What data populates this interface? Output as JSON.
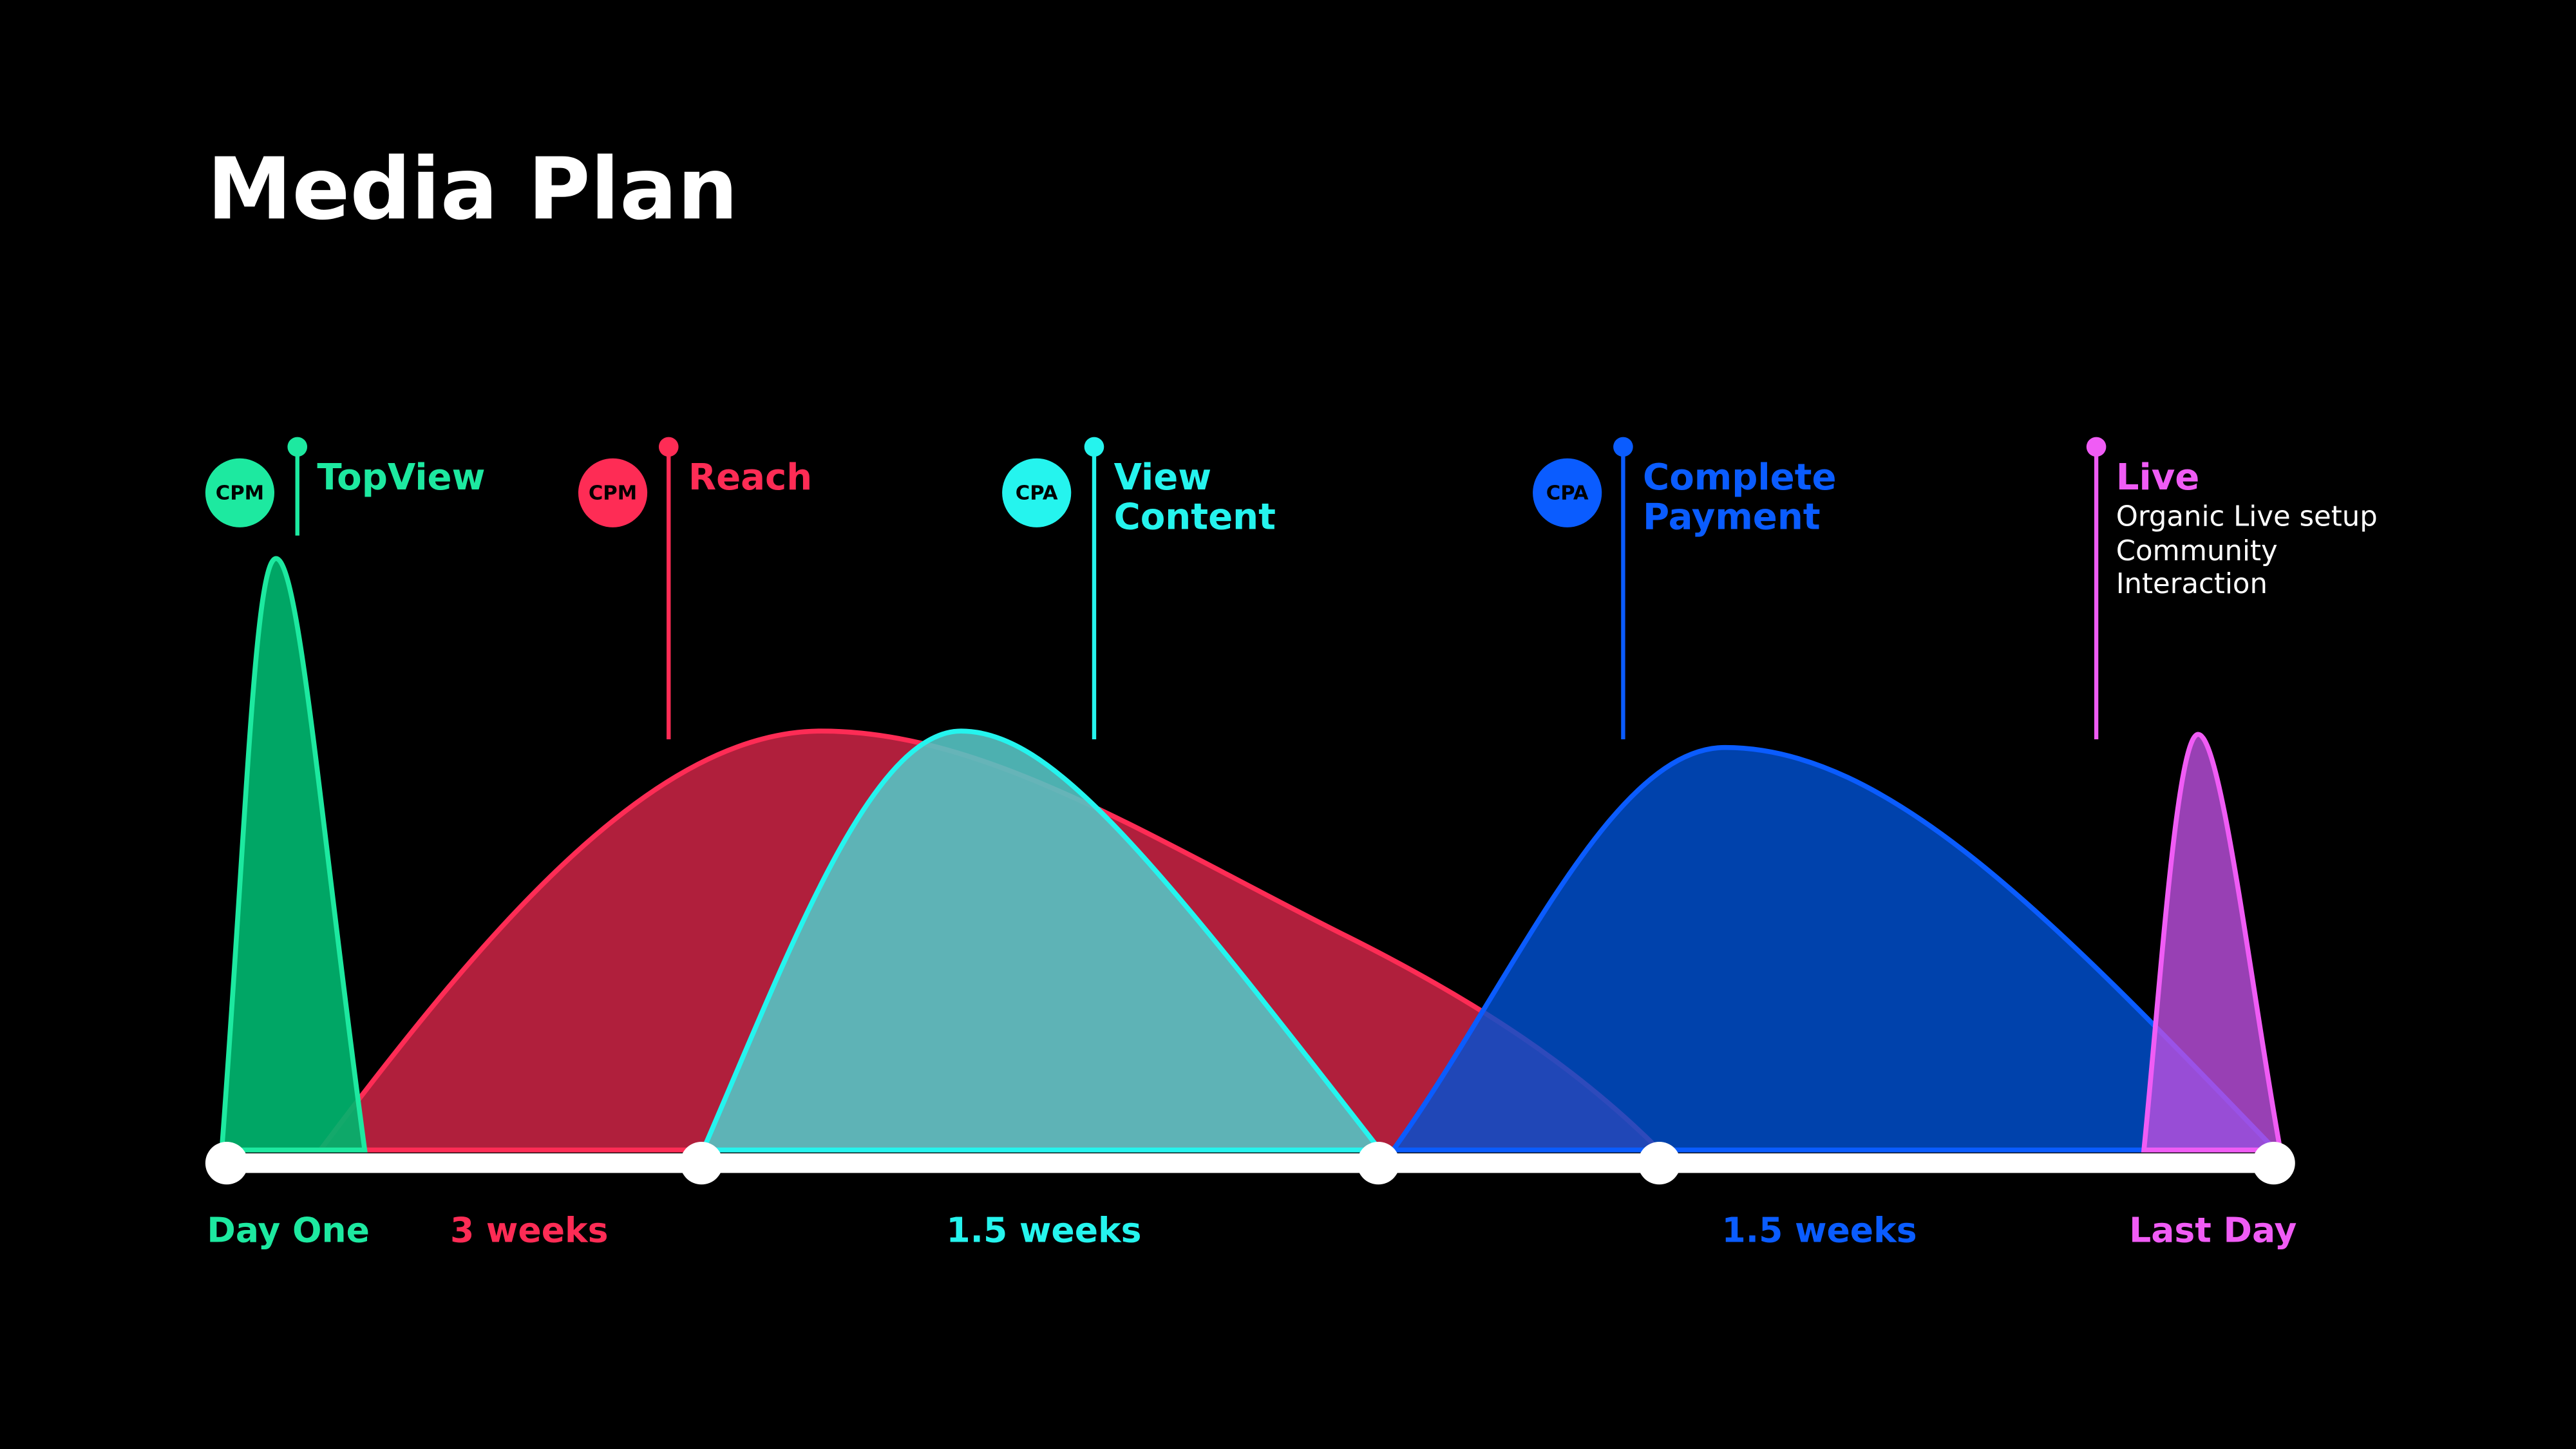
{
  "title": "Media Plan",
  "phases": [
    {
      "badge": "CPM",
      "label_lines": [
        "TopView"
      ]
    },
    {
      "badge": "CPM",
      "label_lines": [
        "Reach"
      ]
    },
    {
      "badge": "CPA",
      "label_lines": [
        "View",
        "Content"
      ]
    },
    {
      "badge": "CPA",
      "label_lines": [
        "Complete",
        "Payment"
      ]
    },
    {
      "label_lines": [
        "Live"
      ],
      "description_lines": [
        "Organic Live setup",
        "Community",
        "Interaction"
      ]
    }
  ],
  "timeline_labels": [
    "Day One",
    "3 weeks",
    "1.5 weeks",
    "1.5 weeks",
    "Last Day"
  ]
}
